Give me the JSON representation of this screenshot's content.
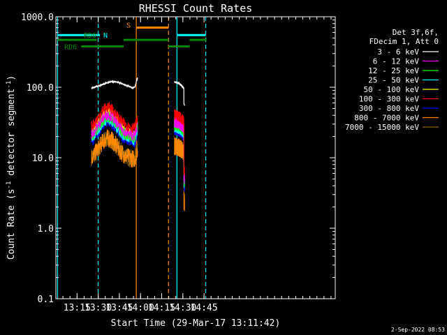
{
  "chart_data": {
    "type": "line",
    "title": "RHESSI Count Rates",
    "xlabel": "Start Time (29-Mar-17 13:11:42)",
    "ylabel_prefix": "Count Rate (s",
    "ylabel_sup": "-1",
    "ylabel_mid": " detector segment",
    "ylabel_end": ")",
    "yscale": "log",
    "ylim": [
      0.1,
      1000.0
    ],
    "xlim_minutes": [
      13.0,
      16.3
    ],
    "ytick_labels": [
      {
        "v": 1000,
        "label": "1000.0"
      },
      {
        "v": 100,
        "label": "100.0"
      },
      {
        "v": 10,
        "label": "10.0"
      },
      {
        "v": 1,
        "label": "1.0"
      },
      {
        "v": 0.1,
        "label": "0.1"
      }
    ],
    "xtick_labels": [
      {
        "t": 13.25,
        "label": "13:15"
      },
      {
        "t": 13.5,
        "label": "13:30"
      },
      {
        "t": 13.75,
        "label": "13:45"
      },
      {
        "t": 14.0,
        "label": "14:00"
      },
      {
        "t": 14.25,
        "label": "14:15"
      },
      {
        "t": 14.5,
        "label": "14:30"
      },
      {
        "t": 14.75,
        "label": "14:45"
      }
    ],
    "legend_header": [
      "Det 3f,6f,",
      "FDecim 1, Att 0"
    ],
    "series": [
      {
        "name": "3 - 6 keV",
        "color": "#ffffff",
        "scale": 1.0
      },
      {
        "name": "6 - 12 keV",
        "color": "#ff00ff",
        "scale": 0.28
      },
      {
        "name": "12 - 25 keV",
        "color": "#00ff00",
        "scale": 0.26
      },
      {
        "name": "25 - 50 keV",
        "color": "#00ffff",
        "scale": 0.24
      },
      {
        "name": "50 - 100 keV",
        "color": "#ffff00",
        "scale": 0.3
      },
      {
        "name": "100 - 300 keV",
        "color": "#ff0000",
        "scale": 0.36
      },
      {
        "name": "300 - 800 keV",
        "color": "#0000ff",
        "scale": 0.22
      },
      {
        "name": "800 - 7000 keV",
        "color": "#ff8800",
        "scale": 0.13
      },
      {
        "name": "7000 - 15000 keV",
        "color": "#886600",
        "scale": 0.13
      }
    ],
    "segments_minutes": [
      [
        13.42,
        13.965
      ],
      [
        14.4,
        14.52
      ]
    ],
    "attenuator_bars": [
      {
        "label": "N",
        "color": "#00ffff",
        "y": 550,
        "ranges": [
          [
            13.02,
            13.52
          ],
          [
            14.43,
            14.77
          ]
        ]
      },
      {
        "label": "S",
        "color": "#ff8800",
        "y": 700,
        "ranges": [
          [
            13.95,
            14.33
          ]
        ]
      },
      {
        "label": "RD0",
        "color": "#008800",
        "y": 470,
        "ranges": [
          [
            13.02,
            13.48
          ],
          [
            13.8,
            14.33
          ],
          [
            14.58,
            14.78
          ]
        ]
      },
      {
        "label": "RD6",
        "color": "#008800",
        "y": 380,
        "ranges": [
          [
            13.3,
            13.8
          ],
          [
            14.33,
            14.58
          ]
        ]
      }
    ],
    "vlines": [
      {
        "t": 13.02,
        "color": "#00ffff",
        "dash": false
      },
      {
        "t": 13.5,
        "color": "#00ffff",
        "dash": true
      },
      {
        "t": 13.95,
        "color": "#ff8800",
        "dash": false
      },
      {
        "t": 14.33,
        "color": "#ff8800",
        "dash": true
      },
      {
        "t": 14.43,
        "color": "#00ffff",
        "dash": false
      },
      {
        "t": 14.77,
        "color": "#00ffff",
        "dash": true
      }
    ]
  },
  "timestamp": "2-Sep-2022 08:53"
}
